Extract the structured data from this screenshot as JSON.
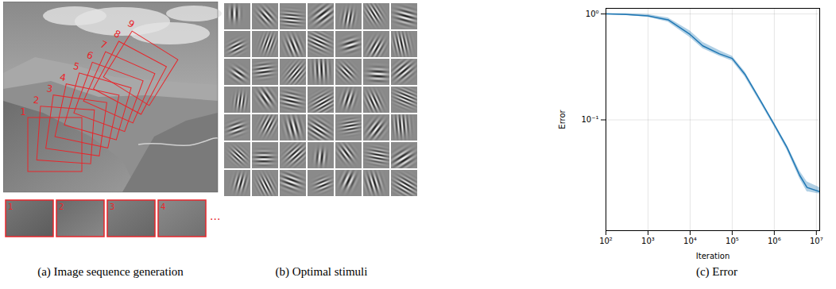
{
  "panels": {
    "a": {
      "caption": "(a) Image sequence generation",
      "box_labels": [
        "1",
        "2",
        "3",
        "4",
        "5",
        "6",
        "7",
        "8",
        "9"
      ],
      "thumbnail_labels": [
        "1",
        "2",
        "3",
        "4"
      ],
      "continuation": "..."
    },
    "b": {
      "caption": "(b) Optimal stimuli",
      "rows": 7,
      "columns": 7
    }
  },
  "chart_data": {
    "type": "line",
    "title": "(c) Error",
    "x_label": "Iteration",
    "y_label": "Error",
    "log": true,
    "grid": true,
    "color": "#1f77b4",
    "x": [
      100,
      300,
      1000,
      3000,
      10000,
      20000,
      50000,
      100000,
      200000,
      500000,
      1000000,
      2000000,
      4000000,
      6000000,
      12000000
    ],
    "values": [
      1.0,
      0.99,
      0.96,
      0.88,
      0.64,
      0.5,
      0.42,
      0.38,
      0.27,
      0.145,
      0.09,
      0.055,
      0.03,
      0.023,
      0.021
    ],
    "error_low": [
      0.99,
      0.97,
      0.93,
      0.84,
      0.6,
      0.47,
      0.4,
      0.36,
      0.255,
      0.138,
      0.086,
      0.052,
      0.028,
      0.021,
      0.02
    ],
    "error_high": [
      1.01,
      1.01,
      0.99,
      0.92,
      0.69,
      0.54,
      0.45,
      0.4,
      0.285,
      0.152,
      0.094,
      0.058,
      0.033,
      0.026,
      0.023
    ],
    "xlim": [
      100,
      12000000
    ],
    "ylim": [
      0.009,
      1.13
    ],
    "xticks": [
      {
        "value": 100,
        "label": "10²"
      },
      {
        "value": 1000,
        "label": "10³"
      },
      {
        "value": 10000,
        "label": "10⁴"
      },
      {
        "value": 100000,
        "label": "10⁵"
      },
      {
        "value": 1000000,
        "label": "10⁶"
      },
      {
        "value": 10000000,
        "label": "10⁷"
      }
    ],
    "yticks": [
      {
        "value": 0.1,
        "label": "10⁻¹"
      },
      {
        "value": 1,
        "label": "10⁰"
      }
    ]
  }
}
